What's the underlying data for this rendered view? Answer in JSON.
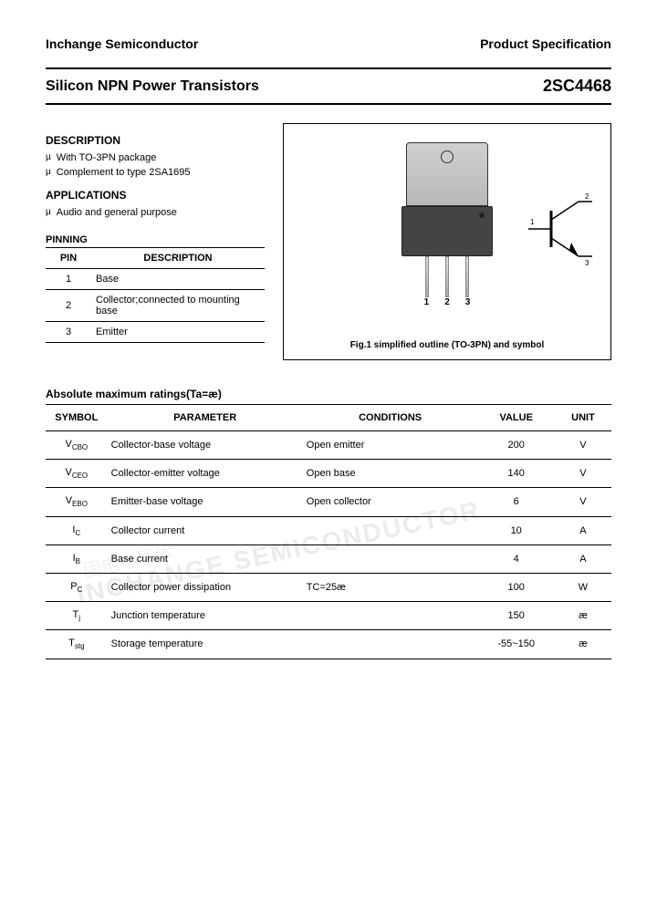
{
  "header": {
    "company": "Inchange Semiconductor",
    "doc_type": "Product Specification"
  },
  "title": {
    "left": "Silicon NPN Power Transistors",
    "right": "2SC4468"
  },
  "description": {
    "heading": "DESCRIPTION",
    "items": [
      "With TO-3PN package",
      "Complement to type 2SA1695"
    ]
  },
  "applications": {
    "heading": "APPLICATIONS",
    "items": [
      "Audio and general purpose"
    ]
  },
  "pinning": {
    "heading": "PINNING",
    "columns": [
      "PIN",
      "DESCRIPTION"
    ],
    "rows": [
      {
        "pin": "1",
        "desc": "Base"
      },
      {
        "pin": "2",
        "desc": "Collector;connected to mounting base"
      },
      {
        "pin": "3",
        "desc": "Emitter"
      }
    ]
  },
  "figure": {
    "lead_labels": [
      "1",
      "2",
      "3"
    ],
    "symbol_pins": {
      "base": "1",
      "collector": "2",
      "emitter": "3"
    },
    "caption": "Fig.1 simplified outline (TO-3PN) and symbol"
  },
  "ratings": {
    "heading": "Absolute maximum ratings(Ta=æ)",
    "columns": [
      "SYMBOL",
      "PARAMETER",
      "CONDITIONS",
      "VALUE",
      "UNIT"
    ],
    "rows": [
      {
        "symbol": "V",
        "sub": "CBO",
        "param": "Collector-base voltage",
        "cond": "Open emitter",
        "value": "200",
        "unit": "V"
      },
      {
        "symbol": "V",
        "sub": "CEO",
        "param": "Collector-emitter voltage",
        "cond": "Open base",
        "value": "140",
        "unit": "V"
      },
      {
        "symbol": "V",
        "sub": "EBO",
        "param": "Emitter-base voltage",
        "cond": "Open collector",
        "value": "6",
        "unit": "V"
      },
      {
        "symbol": "I",
        "sub": "C",
        "param": "Collector current",
        "cond": "",
        "value": "10",
        "unit": "A"
      },
      {
        "symbol": "I",
        "sub": "B",
        "param": "Base current",
        "cond": "",
        "value": "4",
        "unit": "A"
      },
      {
        "symbol": "P",
        "sub": "C",
        "param": "Collector power dissipation",
        "cond": "TC=25æ",
        "value": "100",
        "unit": "W"
      },
      {
        "symbol": "T",
        "sub": "j",
        "param": "Junction temperature",
        "cond": "",
        "value": "150",
        "unit": "æ"
      },
      {
        "symbol": "T",
        "sub": "stg",
        "param": "Storage temperature",
        "cond": "",
        "value": "-55~150",
        "unit": "æ"
      }
    ]
  },
  "watermark": {
    "english": "INCHANGE SEMICONDUCTOR",
    "cjk": "固电半导体"
  },
  "colors": {
    "text": "#000000",
    "bg": "#ffffff",
    "pkg_tab": "#c4c4c4",
    "pkg_body": "#444444",
    "lead": "#bbbbbb",
    "watermark_color": "rgba(0,0,0,0.08)"
  }
}
